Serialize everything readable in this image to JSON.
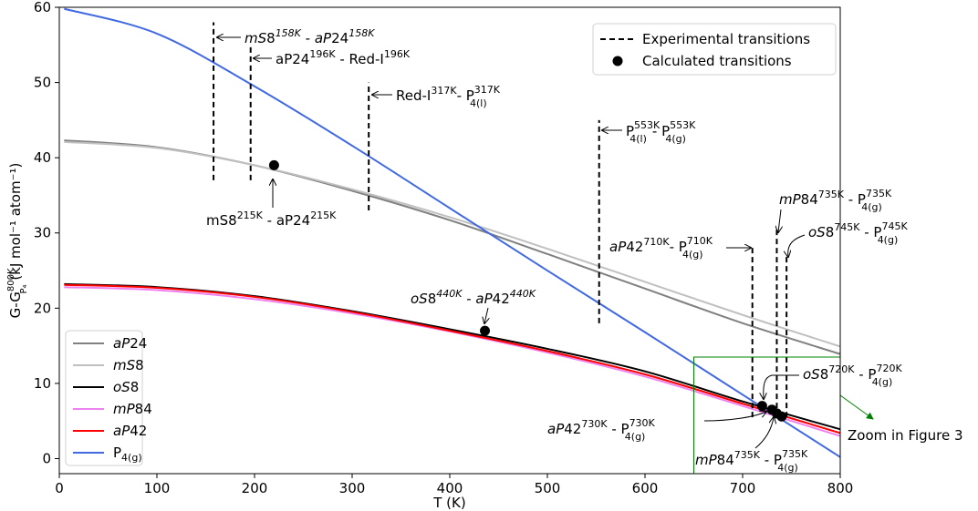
{
  "chart_data": {
    "type": "line",
    "xlabel": "T (K)",
    "ylabel": {
      "main": "G-G",
      "sup": "800K",
      "sub": "P₄",
      "rest": " (kJ mol⁻¹ atom⁻¹)"
    },
    "xlim": [
      0,
      800
    ],
    "ylim": [
      -2,
      60
    ],
    "xticks": [
      0,
      100,
      200,
      300,
      400,
      500,
      600,
      700,
      800
    ],
    "yticks": [
      0,
      10,
      20,
      30,
      40,
      50,
      60
    ],
    "grid": false,
    "legend_position": "lower-left",
    "series": [
      {
        "name": "aP24",
        "name_it": "aP",
        "name_rest": "24",
        "color": "#808080",
        "x": [
          5,
          100,
          200,
          300,
          400,
          500,
          600,
          700,
          800
        ],
        "y": [
          42.3,
          41.4,
          39.0,
          35.6,
          31.7,
          27.2,
          22.6,
          18.0,
          13.9
        ]
      },
      {
        "name": "mS8",
        "name_it": "mS",
        "name_rest": "8",
        "color": "#c0c0c0",
        "x": [
          5,
          100,
          200,
          300,
          400,
          500,
          600,
          700,
          800
        ],
        "y": [
          42.1,
          41.3,
          39.0,
          35.8,
          32.1,
          27.9,
          23.5,
          19.1,
          14.9
        ]
      },
      {
        "name": "oS8",
        "name_it": "oS",
        "name_rest": "8",
        "color": "#000000",
        "x": [
          5,
          100,
          200,
          300,
          400,
          500,
          600,
          700,
          800
        ],
        "y": [
          23.2,
          22.8,
          21.6,
          19.6,
          17.2,
          14.6,
          11.6,
          7.6,
          3.9
        ]
      },
      {
        "name": "mP84",
        "name_it": "mP",
        "name_rest": "84",
        "color": "#ee82ee",
        "x": [
          5,
          100,
          200,
          300,
          400,
          500,
          600,
          700,
          800
        ],
        "y": [
          22.8,
          22.4,
          21.2,
          19.3,
          16.9,
          14.1,
          10.9,
          7.0,
          3.0
        ]
      },
      {
        "name": "aP42",
        "name_it": "aP",
        "name_rest": "42",
        "color": "#ff0000",
        "x": [
          5,
          100,
          200,
          300,
          400,
          500,
          600,
          700,
          800
        ],
        "y": [
          23.1,
          22.7,
          21.5,
          19.5,
          17.0,
          14.3,
          11.2,
          7.3,
          3.4
        ]
      },
      {
        "name": "P4(g)",
        "name_it": "",
        "name_rest": "P",
        "name_sub": "4(g)",
        "color": "#4169e1",
        "x": [
          5,
          100,
          200,
          300,
          400,
          500,
          600,
          700,
          800
        ],
        "y": [
          59.8,
          56.5,
          49.5,
          41.6,
          33.3,
          25.0,
          16.8,
          8.5,
          0.2
        ]
      }
    ],
    "calculated_points": [
      {
        "x": 220,
        "y": 39.0
      },
      {
        "x": 436,
        "y": 17.0
      },
      {
        "x": 720,
        "y": 7.0
      },
      {
        "x": 730,
        "y": 6.5
      },
      {
        "x": 735,
        "y": 6.0
      },
      {
        "x": 740,
        "y": 5.6
      }
    ],
    "experimental_lines": [
      {
        "x": 158,
        "y0": 37,
        "y1": 58
      },
      {
        "x": 196,
        "y0": 37,
        "y1": 55
      },
      {
        "x": 317,
        "y0": 33,
        "y1": 50
      },
      {
        "x": 553,
        "y0": 18,
        "y1": 45
      },
      {
        "x": 710,
        "y0": 5.5,
        "y1": 28.5
      },
      {
        "x": 735,
        "y0": 5.5,
        "y1": 30.5
      },
      {
        "x": 745,
        "y0": 5.5,
        "y1": 27
      }
    ],
    "zoom_box": {
      "x0": 650,
      "x1": 800,
      "y0": -2,
      "y1": 13.5,
      "label": "Zoom in Figure 3"
    },
    "legend_top": {
      "experimental": "Experimental transitions",
      "calculated": "Calculated transitions"
    },
    "annotations": {
      "a158": {
        "p1": "mS",
        "p2": "8",
        "s1": "158K",
        "mid": " - ",
        "p3": "aP",
        "p4": "24",
        "s2": "158K"
      },
      "a196": {
        "p1": "aP24",
        "s1": "196K",
        "mid": " - Red-I",
        "s2": "196K"
      },
      "a317": {
        "p1": "Red-I",
        "s1": "317K",
        "mid": "- P",
        "sup2": "317K",
        "sub2": "4(l)"
      },
      "a553": {
        "p1": "P",
        "sup1": "553K",
        "sub1": "4(l)",
        "mid": "- P",
        "sup2": "553K",
        "sub2": "4(g)"
      },
      "a215": {
        "p1": "mS8",
        "s1": "215K",
        "mid": " - aP24",
        "s2": "215K"
      },
      "a440": {
        "p1": "oS",
        "p2": "8",
        "s1": "440K",
        "mid": " - ",
        "p3": "aP",
        "p4": "42",
        "s2": "440K"
      },
      "a710": {
        "p1": "aP",
        "p2": "42",
        "s1": "710K",
        "mid": "- P",
        "sup2": "710K",
        "sub2": "4(g)"
      },
      "a735t": {
        "p1": "mP",
        "p2": "84",
        "s1": "735K",
        "mid": " - P",
        "sup2": "735K",
        "sub2": "4(g)"
      },
      "a745": {
        "p1": "oS",
        "p2": "8",
        "s1": "745K",
        "mid": " - P",
        "sup2": "745K",
        "sub2": "4(g)"
      },
      "a720": {
        "p1": "oS",
        "p2": "8",
        "s1": "720K",
        "mid": " - P",
        "sup2": "720K",
        "sub2": "4(g)"
      },
      "a730": {
        "p1": "aP",
        "p2": "42",
        "s1": "730K",
        "mid": " - P",
        "sup2": "730K",
        "sub2": "4(g)"
      },
      "a735b": {
        "p1": "mP",
        "p2": "84",
        "s1": "735K",
        "mid": " - P",
        "sup2": "735K",
        "sub2": "4(g)"
      }
    }
  }
}
